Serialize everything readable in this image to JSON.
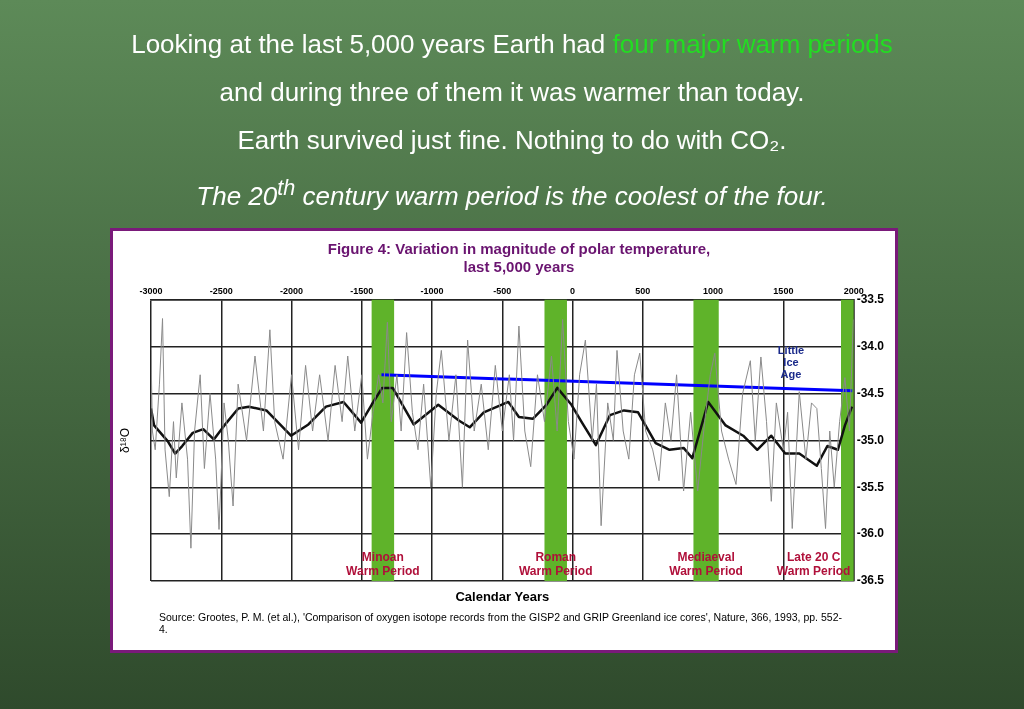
{
  "chart_data": {
    "type": "line",
    "title": "Figure 4: Variation in magnitude of polar temperature, last 5,000 years",
    "xlabel": "Calendar Years",
    "ylabel": "δ¹⁸O",
    "xlim": [
      -3000,
      2000
    ],
    "xticks": [
      -3000,
      -2500,
      -2000,
      -1500,
      -1000,
      -500,
      0,
      500,
      1000,
      1500,
      2000
    ],
    "ylim": [
      -36.5,
      -33.5
    ],
    "yticks": [
      -33.5,
      {
        "value": -34,
        "label": "-34.0"
      },
      -34.5,
      {
        "value": -35,
        "label": "-35.0"
      },
      -35.5,
      {
        "value": -36,
        "label": "-36.0"
      },
      -36.5
    ],
    "grid": true,
    "legend": false,
    "marker": "none",
    "bands": [
      {
        "axis": "x",
        "from": -1430,
        "to": -1270,
        "label": "Minoan Warm Period",
        "color": "#5fb32a"
      },
      {
        "axis": "x",
        "from": -200,
        "to": -40,
        "label": "Roman Warm Period",
        "color": "#5fb32a"
      },
      {
        "axis": "x",
        "from": 860,
        "to": 1040,
        "label": "Mediaeval Warm Period",
        "color": "#5fb32a"
      },
      {
        "axis": "x",
        "from": 1910,
        "to": 2000,
        "label": "Late 20 C Warm Period",
        "color": "#5fb32a"
      }
    ],
    "annotations": [
      "Looking at the last 5,000 years Earth had",
      "four major warm periods",
      "and during three of them it was warmer than today.",
      "Earth survived just fine. Nothing to do with CO₂.",
      "The 20$^{th}$ century warm period is the coolest of the four.",
      "Source: Grootes, P. M. (et al.), 'Comparison of oxygen isotope records from the GISP2 and GRIP Greenland ice cores', Nature, 366, 1993, pp. 552-4.",
      "Little Ice Age"
    ],
    "series": [
      {
        "color": "#8a8a8a",
        "x": [
          -3000,
          -2990,
          -2970,
          -2940,
          -2918,
          -2900,
          -2870,
          -2840,
          -2820,
          -2780,
          -2740,
          -2716,
          -2690,
          -2650,
          -2620,
          -2580,
          -2540,
          -2516,
          -2480,
          -2450,
          -2416,
          -2380,
          -2320,
          -2260,
          -2200,
          -2154,
          -2120,
          -2060,
          -2000,
          -1950,
          -1900,
          -1850,
          -1800,
          -1740,
          -1690,
          -1640,
          -1600,
          -1550,
          -1500,
          -1460,
          -1420,
          -1380,
          -1350,
          -1318,
          -1290,
          -1250,
          -1220,
          -1181,
          -1140,
          -1100,
          -1060,
          -1009,
          -970,
          -934,
          -880,
          -830,
          -784,
          -747,
          -700,
          -650,
          -600,
          -550,
          -500,
          -450,
          -420,
          -382,
          -340,
          -298,
          -250,
          -200,
          -150,
          -110,
          -71,
          -30,
          10,
          50,
          91,
          140,
          170,
          203,
          250,
          290,
          316,
          360,
          400,
          440,
          478,
          520,
          570,
          615,
          660,
          700,
          740,
          790,
          840,
          890,
          940,
          980,
          1012,
          1060,
          1110,
          1163,
          1210,
          1265,
          1300,
          1340,
          1380,
          1414,
          1450,
          1500,
          1530,
          1563,
          1613,
          1660,
          1700,
          1738,
          1770,
          1800,
          1830,
          1862,
          1900,
          1938,
          1970,
          1998
        ],
        "values": [
          -34.05,
          -34.9,
          -35.1,
          -34.4,
          -33.7,
          -35.1,
          -35.6,
          -34.8,
          -35.4,
          -34.6,
          -35.2,
          -36.15,
          -34.9,
          -34.3,
          -35.3,
          -34.5,
          -35.2,
          -35.95,
          -34.6,
          -35.0,
          -35.7,
          -34.4,
          -35.0,
          -34.1,
          -34.9,
          -33.82,
          -34.8,
          -35.2,
          -34.3,
          -35.1,
          -34.2,
          -34.9,
          -34.3,
          -35.0,
          -34.2,
          -34.8,
          -34.1,
          -34.9,
          -34.3,
          -35.2,
          -34.7,
          -34.3,
          -34.6,
          -33.74,
          -34.8,
          -34.3,
          -34.9,
          -33.85,
          -34.7,
          -35.1,
          -34.4,
          -35.5,
          -34.5,
          -34.04,
          -35.0,
          -34.3,
          -35.5,
          -33.93,
          -34.9,
          -34.4,
          -35.1,
          -34.2,
          -34.9,
          -34.3,
          -35.0,
          -33.78,
          -34.9,
          -35.28,
          -34.3,
          -34.8,
          -34.1,
          -34.9,
          -33.71,
          -34.8,
          -35.2,
          -34.3,
          -33.93,
          -35.0,
          -34.4,
          -35.91,
          -34.6,
          -35.0,
          -34.04,
          -34.9,
          -35.2,
          -34.3,
          -34.07,
          -34.9,
          -35.1,
          -35.43,
          -34.6,
          -35.0,
          -34.3,
          -35.54,
          -34.7,
          -35.54,
          -34.8,
          -34.3,
          -34.07,
          -34.9,
          -35.2,
          -35.47,
          -34.5,
          -34.15,
          -35.0,
          -34.11,
          -34.8,
          -35.65,
          -34.6,
          -35.1,
          -34.7,
          -35.94,
          -34.48,
          -35.2,
          -34.6,
          -34.66,
          -35.3,
          -35.94,
          -34.9,
          -35.5,
          -34.8,
          -34.33,
          -34.9,
          -33.71
        ]
      },
      {
        "color": "#111111",
        "x": [
          -3000,
          -2978,
          -2880,
          -2828,
          -2778,
          -2703,
          -2628,
          -2553,
          -2478,
          -2379,
          -2304,
          -2179,
          -2004,
          -1880,
          -1755,
          -1630,
          -1505,
          -1430,
          -1355,
          -1280,
          -1131,
          -956,
          -807,
          -732,
          -632,
          -457,
          -382,
          -283,
          -186,
          -109,
          -8,
          67,
          166,
          266,
          366,
          466,
          591,
          690,
          790,
          852,
          965,
          1089,
          1214,
          1314,
          1414,
          1513,
          1613,
          1738,
          1813,
          1888,
          1938,
          1988
        ],
        "values": [
          -34.66,
          -34.84,
          -35.01,
          -35.14,
          -35.06,
          -34.92,
          -34.88,
          -34.99,
          -34.84,
          -34.66,
          -34.64,
          -34.68,
          -34.95,
          -34.83,
          -34.64,
          -34.59,
          -34.81,
          -34.62,
          -34.44,
          -34.44,
          -34.83,
          -34.62,
          -34.79,
          -34.86,
          -34.7,
          -34.59,
          -34.75,
          -34.77,
          -34.62,
          -34.44,
          -34.62,
          -34.81,
          -35.05,
          -34.73,
          -34.68,
          -34.7,
          -35.03,
          -35.1,
          -35.08,
          -35.19,
          -34.59,
          -34.84,
          -34.95,
          -35.1,
          -34.95,
          -35.14,
          -35.14,
          -35.27,
          -35.06,
          -35.1,
          -34.84,
          -34.64
        ]
      },
      {
        "type": "line",
        "color": "#0000ff",
        "x": [
          -1360,
          1990
        ],
        "values": [
          -34.3,
          -34.47
        ]
      }
    ]
  }
}
